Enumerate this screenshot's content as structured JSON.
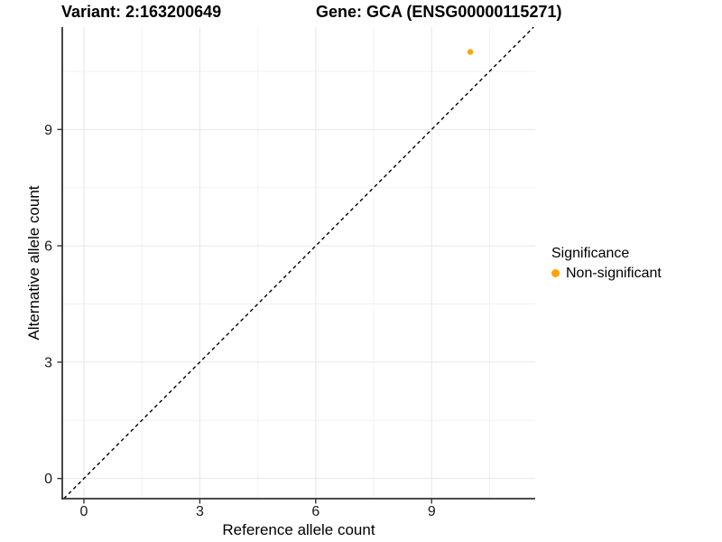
{
  "chart_data": {
    "type": "scatter",
    "title_left": "Variant: 2:163200649",
    "title_right": "Gene: GCA (ENSG00000115271)",
    "xlabel": "Reference allele count",
    "ylabel": "Alternative allele count",
    "xlim": [
      -0.56,
      11.68
    ],
    "ylim": [
      -0.52,
      11.64
    ],
    "x_ticks": [
      0,
      3,
      6,
      9
    ],
    "y_ticks": [
      0,
      3,
      6,
      9
    ],
    "x_minor_ticks": [
      1.5,
      4.5,
      7.5,
      10.5
    ],
    "y_minor_ticks": [
      1.5,
      4.5,
      7.5,
      10.5
    ],
    "grid": true,
    "legend_position": "right",
    "reference_line": {
      "slope": 1,
      "intercept": 0,
      "style": "dashed",
      "color": "#000000"
    },
    "series": [
      {
        "name": "Non-significant",
        "color": "#FFA500",
        "points": [
          {
            "x": 10,
            "y": 11
          }
        ]
      }
    ],
    "legend": {
      "title": "Significance",
      "items": [
        {
          "label": "Non-significant",
          "color": "#FFA500"
        }
      ]
    }
  },
  "colors": {
    "background": "#FFFFFF",
    "grid_major": "#E6E6E6",
    "grid_minor": "#F2F2F2",
    "axis_line": "#333333",
    "tick_text": "#1A1A1A",
    "title_text": "#000000"
  }
}
